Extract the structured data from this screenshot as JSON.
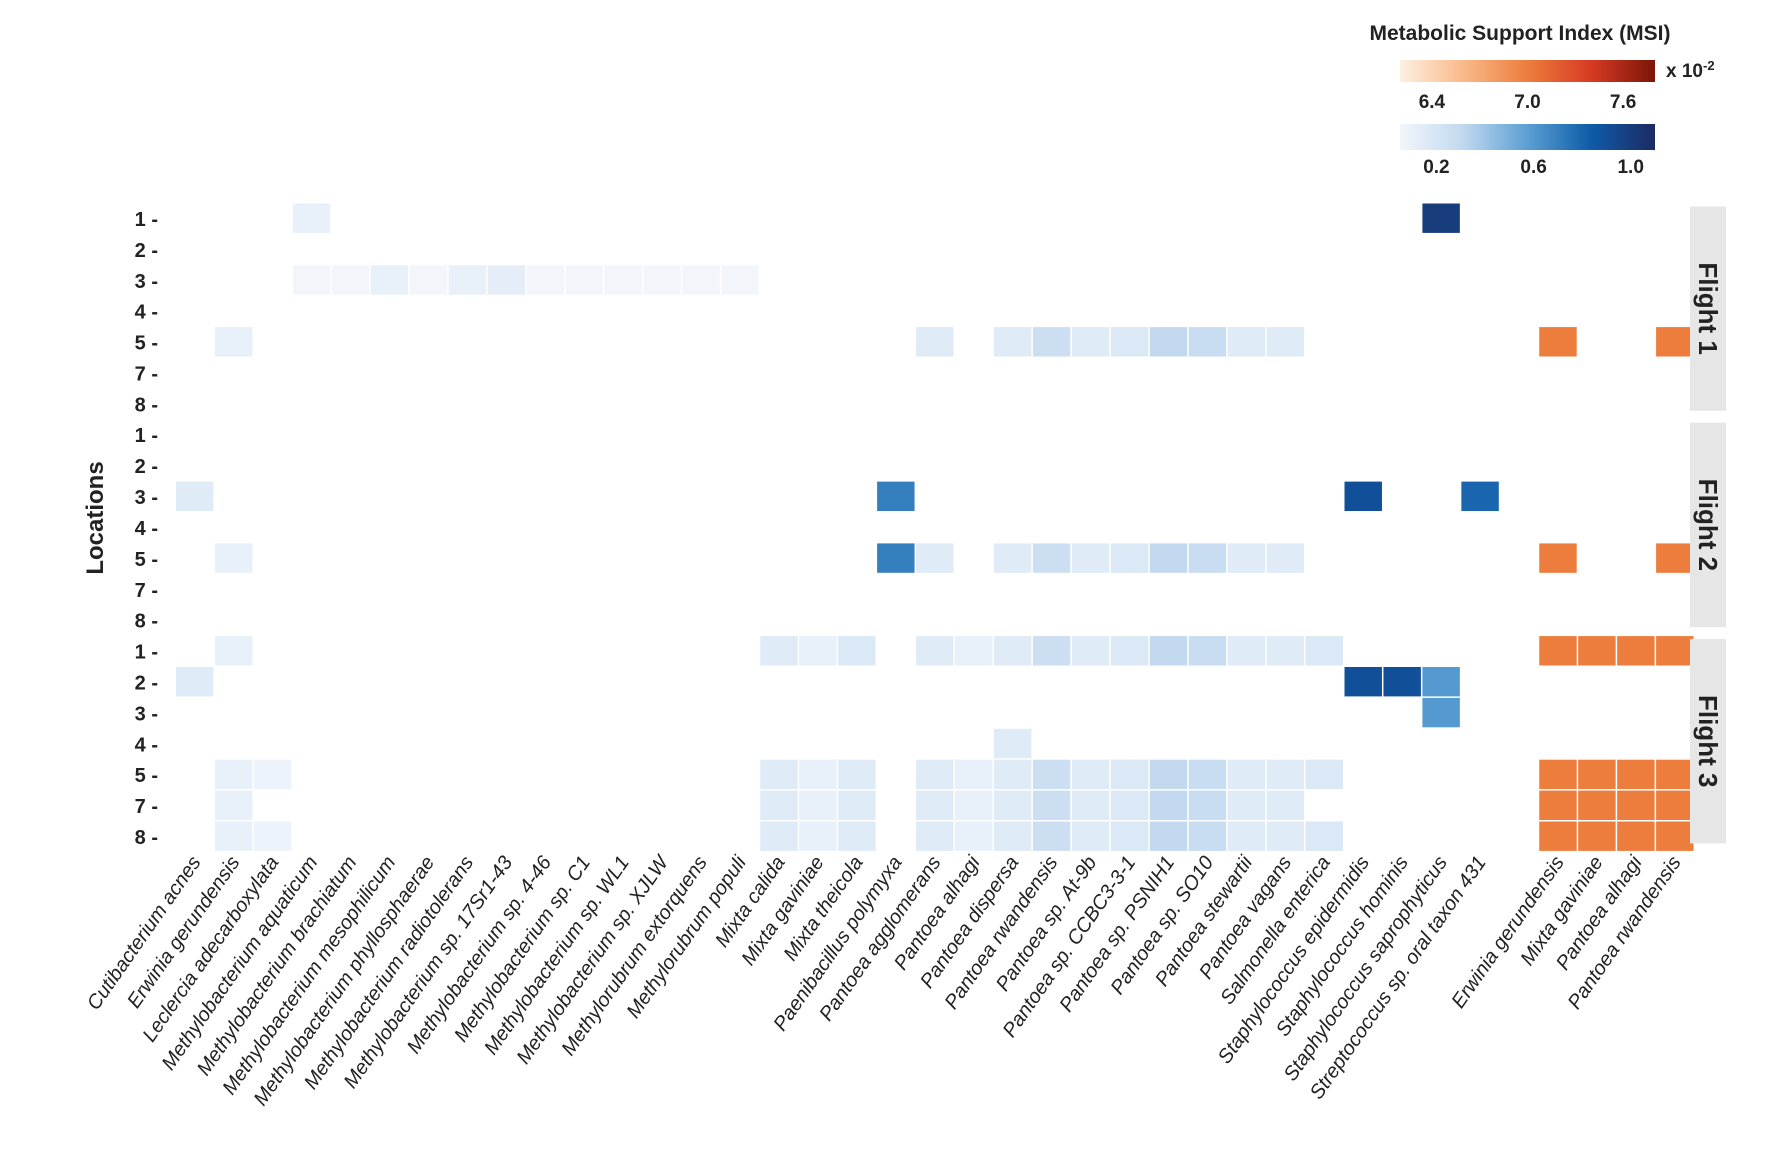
{
  "chart_data": {
    "type": "heatmap",
    "title": "",
    "ylabel": "Locations",
    "xlabel": "",
    "grid": false,
    "columns": [
      {
        "label": "Cutibacterium acnes",
        "scale": "blue"
      },
      {
        "label": "Erwinia gerundensis",
        "scale": "blue"
      },
      {
        "label": "Leclercia adecarboxylata",
        "scale": "blue"
      },
      {
        "label": "Methylobacterium aquaticum",
        "scale": "blue"
      },
      {
        "label": "Methylobacterium brachiatum",
        "scale": "blue"
      },
      {
        "label": "Methylobacterium mesophilicum",
        "scale": "blue"
      },
      {
        "label": "Methylobacterium phyllosphaerae",
        "scale": "blue"
      },
      {
        "label": "Methylobacterium radiotolerans",
        "scale": "blue"
      },
      {
        "label": "Methylobacterium sp. 17Sr1-43",
        "scale": "blue"
      },
      {
        "label": "Methylobacterium sp. 4-46",
        "scale": "blue"
      },
      {
        "label": "Methylobacterium sp. C1",
        "scale": "blue"
      },
      {
        "label": "Methylobacterium sp. WL1",
        "scale": "blue"
      },
      {
        "label": "Methylobacterium sp. XJLW",
        "scale": "blue"
      },
      {
        "label": "Methylorubrum extorquens",
        "scale": "blue"
      },
      {
        "label": "Methylorubrum populi",
        "scale": "blue"
      },
      {
        "label": "Mixta calida",
        "scale": "blue"
      },
      {
        "label": "Mixta gaviniae",
        "scale": "blue"
      },
      {
        "label": "Mixta theicola",
        "scale": "blue"
      },
      {
        "label": "Paenibacillus polymyxa",
        "scale": "blue"
      },
      {
        "label": "Pantoea agglomerans",
        "scale": "blue"
      },
      {
        "label": "Pantoea alhagi",
        "scale": "blue"
      },
      {
        "label": "Pantoea dispersa",
        "scale": "blue"
      },
      {
        "label": "Pantoea rwandensis",
        "scale": "blue"
      },
      {
        "label": "Pantoea sp. At-9b",
        "scale": "blue"
      },
      {
        "label": "Pantoea sp. CCBC3-3-1",
        "scale": "blue"
      },
      {
        "label": "Pantoea sp. PSNIH1",
        "scale": "blue"
      },
      {
        "label": "Pantoea sp. SO10",
        "scale": "blue"
      },
      {
        "label": "Pantoea stewartii",
        "scale": "blue"
      },
      {
        "label": "Pantoea vagans",
        "scale": "blue"
      },
      {
        "label": "Salmonella enterica",
        "scale": "blue"
      },
      {
        "label": "Staphylococcus epidermidis",
        "scale": "blue"
      },
      {
        "label": "Staphylococcus hominis",
        "scale": "blue"
      },
      {
        "label": "Staphylococcus saprophyticus",
        "scale": "blue"
      },
      {
        "label": "Streptococcus sp. oral taxon 431",
        "scale": "blue"
      },
      {
        "label": "",
        "scale": "none"
      },
      {
        "label": "Erwinia gerundensis",
        "scale": "orange"
      },
      {
        "label": "Mixta gaviniae",
        "scale": "orange"
      },
      {
        "label": "Pantoea alhagi",
        "scale": "orange"
      },
      {
        "label": "Pantoea rwandensis",
        "scale": "orange"
      }
    ],
    "facets": [
      {
        "label": "Flight 1",
        "rows": [
          "1",
          "2",
          "3",
          "4",
          "5",
          "7",
          "8"
        ]
      },
      {
        "label": "Flight 2",
        "rows": [
          "1",
          "2",
          "3",
          "4",
          "5",
          "7",
          "8"
        ]
      },
      {
        "label": "Flight 3",
        "rows": [
          "1",
          "2",
          "3",
          "4",
          "5",
          "7",
          "8"
        ]
      }
    ],
    "cells": [
      {
        "flight": 0,
        "row": 0,
        "col": 3,
        "value": 0.1
      },
      {
        "flight": 0,
        "row": 0,
        "col": 32,
        "value": 1.0
      },
      {
        "flight": 0,
        "row": 2,
        "col": 3,
        "value": 0.03
      },
      {
        "flight": 0,
        "row": 2,
        "col": 4,
        "value": 0.03
      },
      {
        "flight": 0,
        "row": 2,
        "col": 5,
        "value": 0.1
      },
      {
        "flight": 0,
        "row": 2,
        "col": 6,
        "value": 0.03
      },
      {
        "flight": 0,
        "row": 2,
        "col": 7,
        "value": 0.1
      },
      {
        "flight": 0,
        "row": 2,
        "col": 8,
        "value": 0.12
      },
      {
        "flight": 0,
        "row": 2,
        "col": 9,
        "value": 0.03
      },
      {
        "flight": 0,
        "row": 2,
        "col": 10,
        "value": 0.03
      },
      {
        "flight": 0,
        "row": 2,
        "col": 11,
        "value": 0.03
      },
      {
        "flight": 0,
        "row": 2,
        "col": 12,
        "value": 0.03
      },
      {
        "flight": 0,
        "row": 2,
        "col": 13,
        "value": 0.03
      },
      {
        "flight": 0,
        "row": 2,
        "col": 14,
        "value": 0.03
      },
      {
        "flight": 0,
        "row": 4,
        "col": 1,
        "value": 0.1
      },
      {
        "flight": 0,
        "row": 4,
        "col": 19,
        "value": 0.15
      },
      {
        "flight": 0,
        "row": 4,
        "col": 21,
        "value": 0.15
      },
      {
        "flight": 0,
        "row": 4,
        "col": 22,
        "value": 0.25
      },
      {
        "flight": 0,
        "row": 4,
        "col": 23,
        "value": 0.15
      },
      {
        "flight": 0,
        "row": 4,
        "col": 24,
        "value": 0.17
      },
      {
        "flight": 0,
        "row": 4,
        "col": 25,
        "value": 0.3
      },
      {
        "flight": 0,
        "row": 4,
        "col": 26,
        "value": 0.27
      },
      {
        "flight": 0,
        "row": 4,
        "col": 27,
        "value": 0.15
      },
      {
        "flight": 0,
        "row": 4,
        "col": 28,
        "value": 0.15
      },
      {
        "flight": 0,
        "row": 4,
        "col": 35,
        "value": 7.0
      },
      {
        "flight": 0,
        "row": 4,
        "col": 38,
        "value": 7.0
      },
      {
        "flight": 1,
        "row": 2,
        "col": 0,
        "value": 0.15
      },
      {
        "flight": 1,
        "row": 2,
        "col": 18,
        "value": 0.7
      },
      {
        "flight": 1,
        "row": 2,
        "col": 30,
        "value": 0.9
      },
      {
        "flight": 1,
        "row": 2,
        "col": 33,
        "value": 0.8
      },
      {
        "flight": 1,
        "row": 4,
        "col": 1,
        "value": 0.1
      },
      {
        "flight": 1,
        "row": 4,
        "col": 18,
        "value": 0.7
      },
      {
        "flight": 1,
        "row": 4,
        "col": 19,
        "value": 0.15
      },
      {
        "flight": 1,
        "row": 4,
        "col": 21,
        "value": 0.15
      },
      {
        "flight": 1,
        "row": 4,
        "col": 22,
        "value": 0.25
      },
      {
        "flight": 1,
        "row": 4,
        "col": 23,
        "value": 0.15
      },
      {
        "flight": 1,
        "row": 4,
        "col": 24,
        "value": 0.17
      },
      {
        "flight": 1,
        "row": 4,
        "col": 25,
        "value": 0.3
      },
      {
        "flight": 1,
        "row": 4,
        "col": 26,
        "value": 0.27
      },
      {
        "flight": 1,
        "row": 4,
        "col": 27,
        "value": 0.15
      },
      {
        "flight": 1,
        "row": 4,
        "col": 28,
        "value": 0.15
      },
      {
        "flight": 1,
        "row": 4,
        "col": 35,
        "value": 7.0
      },
      {
        "flight": 1,
        "row": 4,
        "col": 38,
        "value": 7.0
      },
      {
        "flight": 2,
        "row": 0,
        "col": 1,
        "value": 0.1
      },
      {
        "flight": 2,
        "row": 0,
        "col": 15,
        "value": 0.15
      },
      {
        "flight": 2,
        "row": 0,
        "col": 16,
        "value": 0.1
      },
      {
        "flight": 2,
        "row": 0,
        "col": 17,
        "value": 0.17
      },
      {
        "flight": 2,
        "row": 0,
        "col": 19,
        "value": 0.15
      },
      {
        "flight": 2,
        "row": 0,
        "col": 20,
        "value": 0.1
      },
      {
        "flight": 2,
        "row": 0,
        "col": 21,
        "value": 0.15
      },
      {
        "flight": 2,
        "row": 0,
        "col": 22,
        "value": 0.25
      },
      {
        "flight": 2,
        "row": 0,
        "col": 23,
        "value": 0.15
      },
      {
        "flight": 2,
        "row": 0,
        "col": 24,
        "value": 0.17
      },
      {
        "flight": 2,
        "row": 0,
        "col": 25,
        "value": 0.3
      },
      {
        "flight": 2,
        "row": 0,
        "col": 26,
        "value": 0.27
      },
      {
        "flight": 2,
        "row": 0,
        "col": 27,
        "value": 0.15
      },
      {
        "flight": 2,
        "row": 0,
        "col": 28,
        "value": 0.15
      },
      {
        "flight": 2,
        "row": 0,
        "col": 29,
        "value": 0.17
      },
      {
        "flight": 2,
        "row": 0,
        "col": 35,
        "value": 7.0
      },
      {
        "flight": 2,
        "row": 0,
        "col": 36,
        "value": 7.0
      },
      {
        "flight": 2,
        "row": 0,
        "col": 37,
        "value": 7.0
      },
      {
        "flight": 2,
        "row": 0,
        "col": 38,
        "value": 7.0
      },
      {
        "flight": 2,
        "row": 1,
        "col": 0,
        "value": 0.15
      },
      {
        "flight": 2,
        "row": 1,
        "col": 30,
        "value": 0.9
      },
      {
        "flight": 2,
        "row": 1,
        "col": 31,
        "value": 0.9
      },
      {
        "flight": 2,
        "row": 1,
        "col": 32,
        "value": 0.6
      },
      {
        "flight": 2,
        "row": 2,
        "col": 32,
        "value": 0.6
      },
      {
        "flight": 2,
        "row": 3,
        "col": 21,
        "value": 0.15
      },
      {
        "flight": 2,
        "row": 4,
        "col": 1,
        "value": 0.1
      },
      {
        "flight": 2,
        "row": 4,
        "col": 2,
        "value": 0.08
      },
      {
        "flight": 2,
        "row": 4,
        "col": 15,
        "value": 0.15
      },
      {
        "flight": 2,
        "row": 4,
        "col": 16,
        "value": 0.1
      },
      {
        "flight": 2,
        "row": 4,
        "col": 17,
        "value": 0.15
      },
      {
        "flight": 2,
        "row": 4,
        "col": 19,
        "value": 0.15
      },
      {
        "flight": 2,
        "row": 4,
        "col": 20,
        "value": 0.1
      },
      {
        "flight": 2,
        "row": 4,
        "col": 21,
        "value": 0.15
      },
      {
        "flight": 2,
        "row": 4,
        "col": 22,
        "value": 0.25
      },
      {
        "flight": 2,
        "row": 4,
        "col": 23,
        "value": 0.15
      },
      {
        "flight": 2,
        "row": 4,
        "col": 24,
        "value": 0.17
      },
      {
        "flight": 2,
        "row": 4,
        "col": 25,
        "value": 0.3
      },
      {
        "flight": 2,
        "row": 4,
        "col": 26,
        "value": 0.27
      },
      {
        "flight": 2,
        "row": 4,
        "col": 27,
        "value": 0.15
      },
      {
        "flight": 2,
        "row": 4,
        "col": 28,
        "value": 0.15
      },
      {
        "flight": 2,
        "row": 4,
        "col": 29,
        "value": 0.17
      },
      {
        "flight": 2,
        "row": 4,
        "col": 35,
        "value": 7.0
      },
      {
        "flight": 2,
        "row": 4,
        "col": 36,
        "value": 7.0
      },
      {
        "flight": 2,
        "row": 4,
        "col": 37,
        "value": 7.0
      },
      {
        "flight": 2,
        "row": 4,
        "col": 38,
        "value": 7.0
      },
      {
        "flight": 2,
        "row": 5,
        "col": 1,
        "value": 0.1
      },
      {
        "flight": 2,
        "row": 5,
        "col": 15,
        "value": 0.15
      },
      {
        "flight": 2,
        "row": 5,
        "col": 16,
        "value": 0.1
      },
      {
        "flight": 2,
        "row": 5,
        "col": 17,
        "value": 0.15
      },
      {
        "flight": 2,
        "row": 5,
        "col": 19,
        "value": 0.15
      },
      {
        "flight": 2,
        "row": 5,
        "col": 20,
        "value": 0.1
      },
      {
        "flight": 2,
        "row": 5,
        "col": 21,
        "value": 0.15
      },
      {
        "flight": 2,
        "row": 5,
        "col": 22,
        "value": 0.25
      },
      {
        "flight": 2,
        "row": 5,
        "col": 23,
        "value": 0.15
      },
      {
        "flight": 2,
        "row": 5,
        "col": 24,
        "value": 0.17
      },
      {
        "flight": 2,
        "row": 5,
        "col": 25,
        "value": 0.3
      },
      {
        "flight": 2,
        "row": 5,
        "col": 26,
        "value": 0.27
      },
      {
        "flight": 2,
        "row": 5,
        "col": 27,
        "value": 0.15
      },
      {
        "flight": 2,
        "row": 5,
        "col": 28,
        "value": 0.15
      },
      {
        "flight": 2,
        "row": 5,
        "col": 35,
        "value": 7.0
      },
      {
        "flight": 2,
        "row": 5,
        "col": 36,
        "value": 7.0
      },
      {
        "flight": 2,
        "row": 5,
        "col": 37,
        "value": 7.0
      },
      {
        "flight": 2,
        "row": 5,
        "col": 38,
        "value": 7.0
      },
      {
        "flight": 2,
        "row": 6,
        "col": 1,
        "value": 0.1
      },
      {
        "flight": 2,
        "row": 6,
        "col": 2,
        "value": 0.08
      },
      {
        "flight": 2,
        "row": 6,
        "col": 15,
        "value": 0.15
      },
      {
        "flight": 2,
        "row": 6,
        "col": 16,
        "value": 0.1
      },
      {
        "flight": 2,
        "row": 6,
        "col": 17,
        "value": 0.15
      },
      {
        "flight": 2,
        "row": 6,
        "col": 19,
        "value": 0.15
      },
      {
        "flight": 2,
        "row": 6,
        "col": 20,
        "value": 0.1
      },
      {
        "flight": 2,
        "row": 6,
        "col": 21,
        "value": 0.15
      },
      {
        "flight": 2,
        "row": 6,
        "col": 22,
        "value": 0.25
      },
      {
        "flight": 2,
        "row": 6,
        "col": 23,
        "value": 0.15
      },
      {
        "flight": 2,
        "row": 6,
        "col": 24,
        "value": 0.17
      },
      {
        "flight": 2,
        "row": 6,
        "col": 25,
        "value": 0.3
      },
      {
        "flight": 2,
        "row": 6,
        "col": 26,
        "value": 0.27
      },
      {
        "flight": 2,
        "row": 6,
        "col": 27,
        "value": 0.15
      },
      {
        "flight": 2,
        "row": 6,
        "col": 28,
        "value": 0.15
      },
      {
        "flight": 2,
        "row": 6,
        "col": 29,
        "value": 0.17
      },
      {
        "flight": 2,
        "row": 6,
        "col": 35,
        "value": 7.0
      },
      {
        "flight": 2,
        "row": 6,
        "col": 36,
        "value": 7.0
      },
      {
        "flight": 2,
        "row": 6,
        "col": 37,
        "value": 7.0
      },
      {
        "flight": 2,
        "row": 6,
        "col": 38,
        "value": 7.0
      }
    ],
    "legend": {
      "title": "Metabolic Support Index (MSI)",
      "placement": "top-right",
      "orange": {
        "range": [
          6.2,
          7.8
        ],
        "ticks": [
          "6.4",
          "7.0",
          "7.6"
        ],
        "multiplier": "x 10",
        "exponent": "-2",
        "colors": [
          "#fdf0e2",
          "#f9b98a",
          "#ec7d3c",
          "#d73a23",
          "#7a1508"
        ]
      },
      "blue": {
        "range": [
          0.05,
          1.1
        ],
        "ticks": [
          "0.2",
          "0.6",
          "1.0"
        ],
        "colors": [
          "#f2f6fb",
          "#c0d8ef",
          "#5b9fd3",
          "#0e5ca8",
          "#1c2a63"
        ]
      }
    },
    "facet_strip_color": "#e6e6e6"
  }
}
